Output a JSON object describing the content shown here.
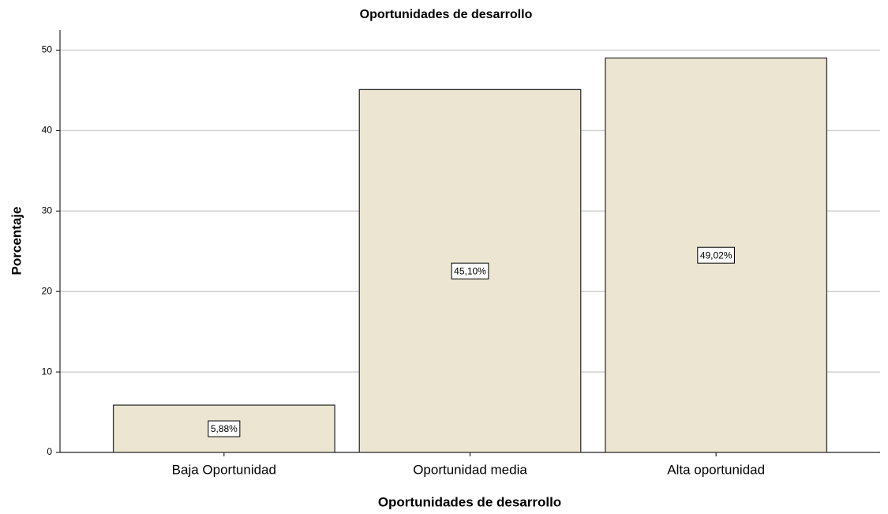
{
  "chart_data": {
    "type": "bar",
    "title": "Oportunidades de desarrollo",
    "x_label": "Oportunidades de desarrollo",
    "y_label": "Porcentaje",
    "categories": [
      "Baja Oportunidad",
      "Oportunidad media",
      "Alta oportunidad"
    ],
    "values": [
      5.88,
      45.1,
      49.02
    ],
    "value_labels": [
      "5,88%",
      "45,10%",
      "49,02%"
    ],
    "color": "#ebe5d1",
    "ylim": [
      0,
      52.5
    ],
    "yticks": [
      0,
      10,
      20,
      30,
      40,
      50
    ],
    "grid": true
  }
}
